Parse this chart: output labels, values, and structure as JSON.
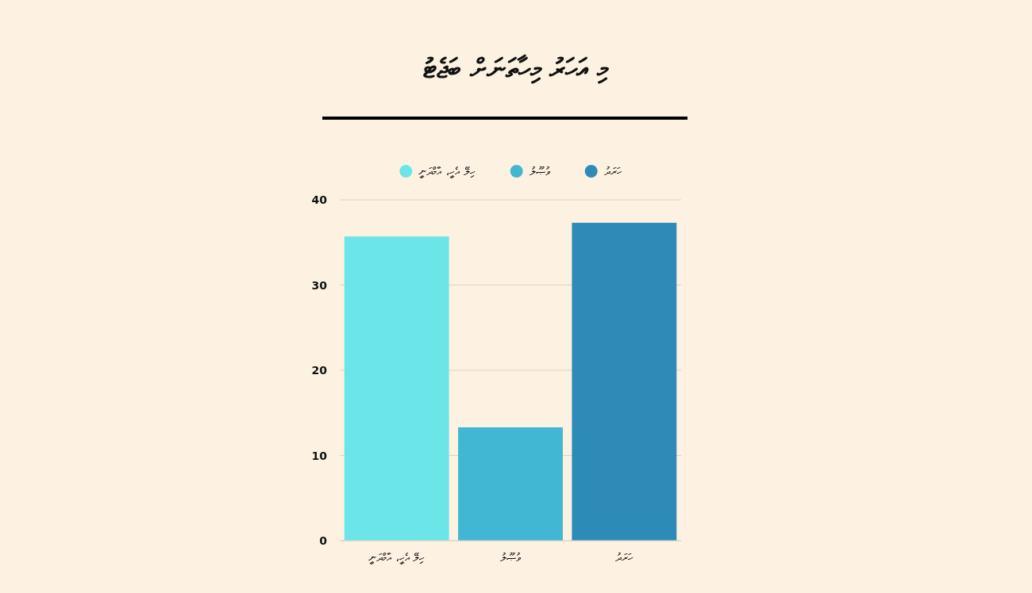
{
  "chart_data": {
    "type": "bar",
    "title": "މި އަހަރު މިހާތަނަށް ބަޖެޓު",
    "categories": [
      "ހިލޭ އެހީ، އާމްދަނީ",
      "ވުޞޫލު",
      "ހަރަދު"
    ],
    "stacked": true,
    "series": [
      {
        "name": "ހިލޭ އެހީ، އާމްދަނީ",
        "color": "#6ce5e8",
        "values": [
          35.7,
          null,
          null
        ]
      },
      {
        "name": "ވުޞޫލު",
        "color": "#41b7d4",
        "values": [
          null,
          13.3,
          null
        ]
      },
      {
        "name": "ހަރަދު",
        "color": "#2e8bb8",
        "values": [
          null,
          null,
          37.3
        ]
      }
    ],
    "ylim": [
      0,
      40
    ],
    "yticks": [
      0,
      10,
      20,
      30,
      40
    ],
    "grid": "y",
    "legend": "top"
  }
}
